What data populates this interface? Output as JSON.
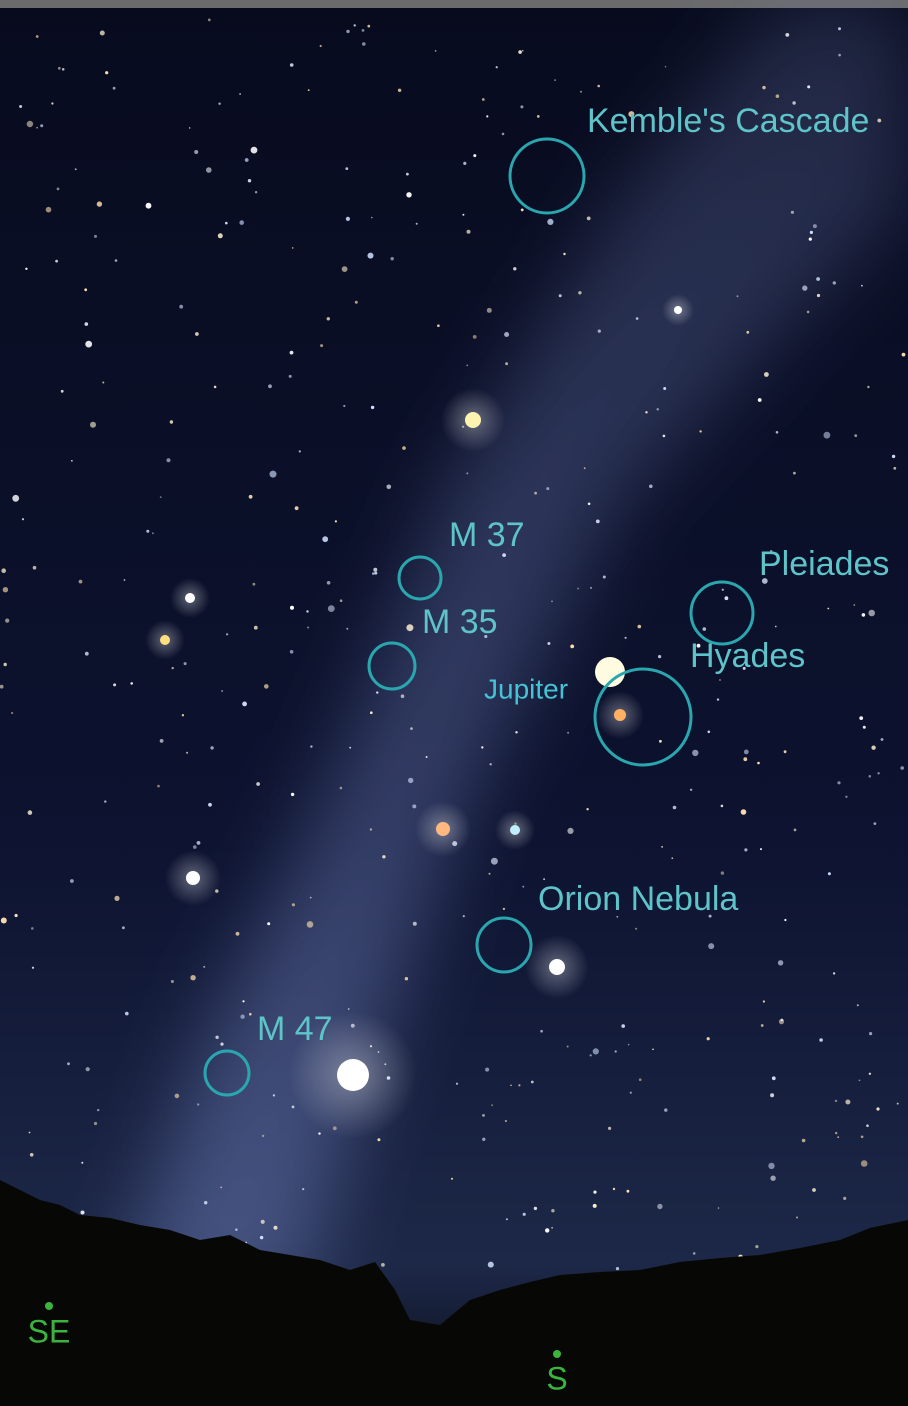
{
  "sky_objects": [
    {
      "label": "Kemble's Cascade"
    },
    {
      "label": "M 37"
    },
    {
      "label": "M 35"
    },
    {
      "label": "Pleiades"
    },
    {
      "label": "Hyades"
    },
    {
      "label": "Orion Nebula"
    },
    {
      "label": "M 47"
    }
  ],
  "planet": {
    "label": "Jupiter"
  },
  "compass": [
    {
      "label": "SE"
    },
    {
      "label": "S"
    }
  ]
}
